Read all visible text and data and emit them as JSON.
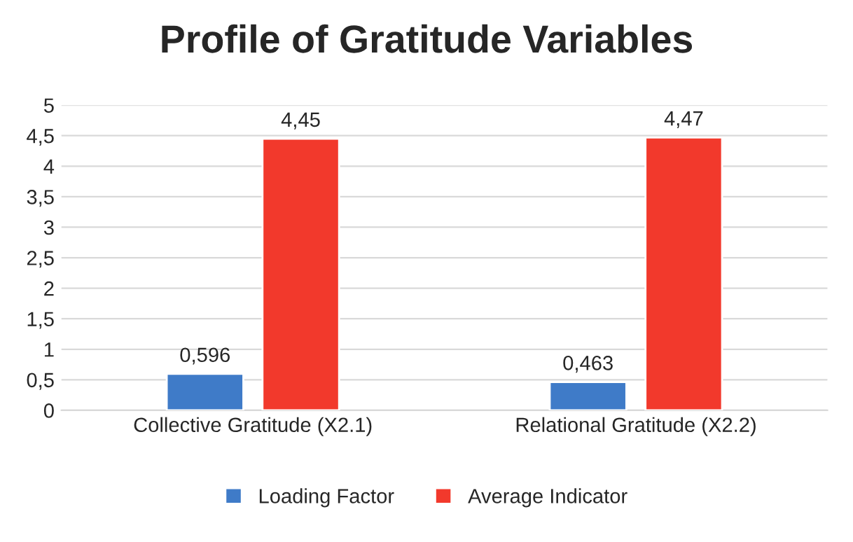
{
  "chart_data": {
    "type": "bar",
    "title": "Profile of Gratitude Variables",
    "categories": [
      "Collective Gratitude (X2.1)",
      "Relational Gratitude (X2.2)"
    ],
    "series": [
      {
        "name": "Loading Factor",
        "color": "#3f7bc8",
        "values": [
          0.596,
          0.463
        ],
        "value_labels": [
          "0,596",
          "0,463"
        ]
      },
      {
        "name": "Average Indicator",
        "color": "#f2392c",
        "values": [
          4.45,
          4.47
        ],
        "value_labels": [
          "4,45",
          "4,47"
        ]
      }
    ],
    "ylim": [
      0,
      5
    ],
    "yticks": [
      0,
      {
        "value": 0.5,
        "label": "0,5"
      },
      1,
      {
        "value": 1.5,
        "label": "1,5"
      },
      2,
      {
        "value": 2.5,
        "label": "2,5"
      },
      3,
      {
        "value": 3.5,
        "label": "3,5"
      },
      4,
      {
        "value": 4.5,
        "label": "4,5"
      },
      5
    ],
    "grid": "y",
    "legend": "bottom"
  }
}
